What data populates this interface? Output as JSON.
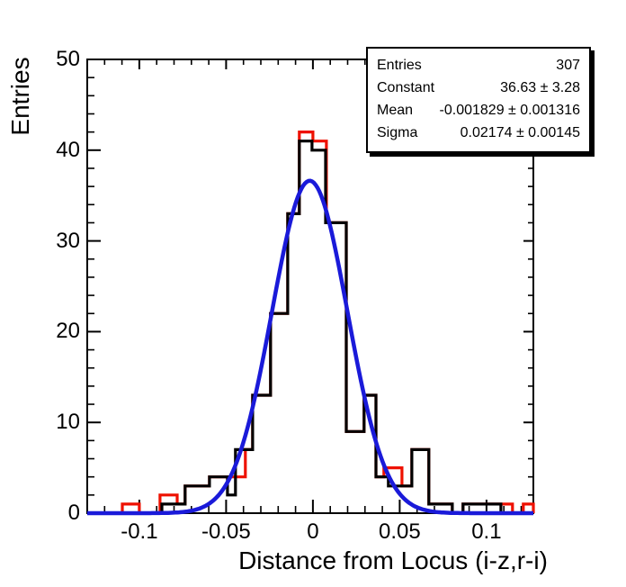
{
  "chart_data": {
    "type": "histogram",
    "title": "",
    "xlabel": "Distance from Locus (i-z,r-i)",
    "ylabel": "Entries",
    "xlim": [
      -0.13,
      0.127
    ],
    "ylim": [
      0,
      50
    ],
    "grid": false,
    "x_ticks": {
      "major": [
        -0.1,
        -0.05,
        0,
        0.05,
        0.1
      ],
      "labels": [
        "-0.1",
        "-0.05",
        "0",
        "0.05",
        "0.1"
      ],
      "minor_step": 0.01
    },
    "y_ticks": {
      "major": [
        0,
        10,
        20,
        30,
        40,
        50
      ],
      "labels": [
        "0",
        "10",
        "20",
        "30",
        "40",
        "50"
      ],
      "minor_step": 2
    },
    "colors": {
      "frame": "#000000",
      "main_histogram": "#000000",
      "comparison_histogram": "#ee1100",
      "fit_curve": "#1a1ad9",
      "background": "#ffffff"
    },
    "series": [
      {
        "name": "comparison-histogram",
        "style": "step",
        "color_key": "comparison_histogram",
        "segments": [
          [
            -0.13,
            -0.1098,
            0
          ],
          [
            -0.1098,
            -0.1,
            1
          ],
          [
            -0.1,
            -0.0881,
            0
          ],
          [
            -0.0881,
            -0.0782,
            2
          ],
          [
            -0.0782,
            -0.0736,
            1
          ],
          [
            -0.0736,
            -0.0596,
            3
          ],
          [
            -0.0596,
            -0.0389,
            4
          ],
          [
            -0.0389,
            -0.0347,
            7
          ],
          [
            -0.0347,
            -0.0244,
            13
          ],
          [
            -0.0244,
            -0.0145,
            22
          ],
          [
            -0.0145,
            -0.0078,
            33
          ],
          [
            -0.0078,
            0.0,
            42
          ],
          [
            0.0,
            0.0078,
            41
          ],
          [
            0.0078,
            0.0192,
            32
          ],
          [
            0.0192,
            0.0295,
            9
          ],
          [
            0.0295,
            0.0363,
            13
          ],
          [
            0.0363,
            0.0409,
            4
          ],
          [
            0.0409,
            0.0513,
            5
          ],
          [
            0.0513,
            0.057,
            3
          ],
          [
            0.057,
            0.0668,
            7
          ],
          [
            0.0668,
            0.0803,
            1
          ],
          [
            0.0803,
            0.0865,
            0
          ],
          [
            0.0865,
            0.115,
            1
          ],
          [
            0.115,
            0.1212,
            0
          ],
          [
            0.1212,
            0.127,
            1
          ]
        ]
      },
      {
        "name": "main-histogram",
        "style": "step",
        "color_key": "main_histogram",
        "segments": [
          [
            -0.13,
            -0.087,
            0
          ],
          [
            -0.087,
            -0.0736,
            1
          ],
          [
            -0.0736,
            -0.0596,
            3
          ],
          [
            -0.0596,
            -0.0492,
            4
          ],
          [
            -0.0492,
            -0.0446,
            2
          ],
          [
            -0.0446,
            -0.0347,
            7
          ],
          [
            -0.0347,
            -0.0244,
            13
          ],
          [
            -0.0244,
            -0.0145,
            22
          ],
          [
            -0.0145,
            -0.0078,
            33
          ],
          [
            -0.0078,
            -0.0005,
            41
          ],
          [
            -0.0005,
            0.0073,
            40
          ],
          [
            0.0073,
            0.0192,
            32
          ],
          [
            0.0192,
            0.0295,
            9
          ],
          [
            0.0295,
            0.0363,
            13
          ],
          [
            0.0363,
            0.0435,
            4
          ],
          [
            0.0435,
            0.057,
            3
          ],
          [
            0.057,
            0.0668,
            7
          ],
          [
            0.0668,
            0.0803,
            1
          ],
          [
            0.0803,
            0.0865,
            0
          ],
          [
            0.0865,
            0.1083,
            1
          ],
          [
            0.1083,
            0.127,
            0
          ]
        ]
      },
      {
        "name": "gaussian-fit",
        "style": "gaussian",
        "color_key": "fit_curve",
        "constant": 36.63,
        "mean": -0.001829,
        "sigma": 0.02174
      }
    ],
    "stats_box": {
      "rows": [
        {
          "label": "Entries",
          "value": "307"
        },
        {
          "label": "Constant",
          "value": "36.63 ± 3.28"
        },
        {
          "label": "Mean",
          "value": "-0.001829 ± 0.001316"
        },
        {
          "label": "Sigma",
          "value": "0.02174 ± 0.00145"
        }
      ]
    }
  }
}
